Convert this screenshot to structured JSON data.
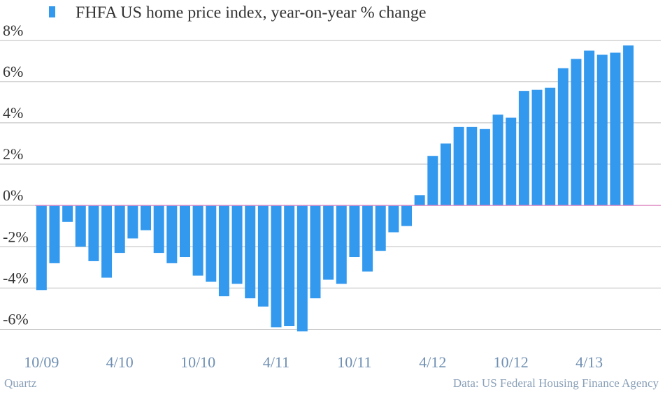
{
  "chart_data": {
    "type": "bar",
    "legend": "FHFA US home price index, year-on-year % change",
    "source": "Data: US Federal Housing Finance Agency",
    "credit": "Quartz",
    "color": "#3399ee",
    "zero_line_color": "#e080c0",
    "categories": [
      "10/09",
      null,
      null,
      null,
      null,
      null,
      "4/10",
      null,
      null,
      null,
      null,
      null,
      "10/10",
      null,
      null,
      null,
      null,
      null,
      "4/11",
      null,
      null,
      null,
      null,
      null,
      "10/11",
      null,
      null,
      null,
      null,
      null,
      "4/12",
      null,
      null,
      null,
      null,
      null,
      "10/12",
      null,
      null,
      null,
      null,
      null,
      "4/13",
      null,
      null,
      null
    ],
    "values": [
      -4.1,
      -2.8,
      -0.8,
      -2.0,
      -2.7,
      -3.5,
      -2.3,
      -1.6,
      -1.2,
      -2.3,
      -2.8,
      -2.5,
      -3.4,
      -3.7,
      -4.4,
      -3.8,
      -4.5,
      -4.9,
      -5.9,
      -5.85,
      -6.1,
      -4.5,
      -3.6,
      -3.8,
      -2.5,
      -3.2,
      -2.2,
      -1.3,
      -1.0,
      0.5,
      2.4,
      3.0,
      3.8,
      3.8,
      3.7,
      4.4,
      4.25,
      5.55,
      5.6,
      5.7,
      6.65,
      7.1,
      7.5,
      7.3,
      7.4,
      7.75
    ],
    "ylim": [
      -7,
      8.6
    ],
    "yticks": [
      {
        "value": -6,
        "label": "-6%"
      },
      {
        "value": -4,
        "label": "-4%"
      },
      {
        "value": -2,
        "label": "-2%"
      },
      {
        "value": 0,
        "label": "0%"
      },
      {
        "value": 2,
        "label": "2%"
      },
      {
        "value": 4,
        "label": "4%"
      },
      {
        "value": 6,
        "label": "6%"
      },
      {
        "value": 8,
        "label": "8%"
      }
    ],
    "grid": true
  }
}
